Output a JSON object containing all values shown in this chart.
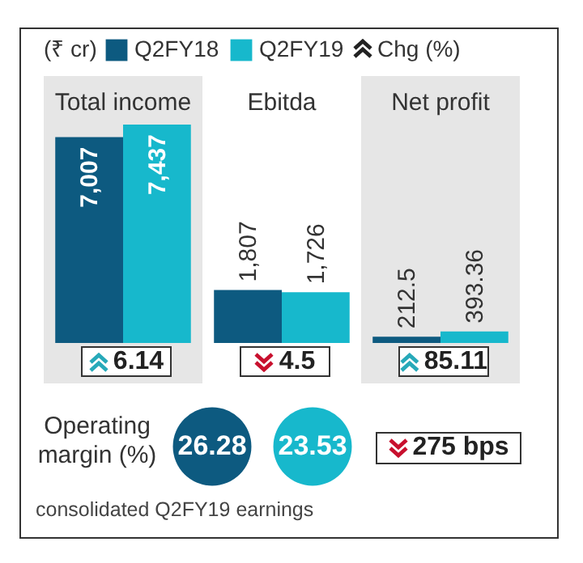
{
  "chart_data": [
    {
      "type": "bar",
      "categories": [
        "Total income",
        "Ebitda",
        "Net profit"
      ],
      "legend": "top",
      "legend_title": "(₹ cr)",
      "series": [
        {
          "name": "Q2FY18",
          "color": "#0d5a80",
          "values": [
            7007,
            1807,
            212.5
          ],
          "value_labels": [
            "7,007",
            "1,807",
            "212.5"
          ]
        },
        {
          "name": "Q2FY19",
          "color": "#17b8cc",
          "values": [
            7437,
            1726,
            393.36
          ],
          "value_labels": [
            "7,437",
            "1,726",
            "393.36"
          ]
        }
      ],
      "annotations": [
        "Chg (%)",
        "6.14",
        "4.5",
        "85.11"
      ]
    },
    {
      "type": "other",
      "title": "Operating margin (%)",
      "values": [
        26.28,
        23.53
      ],
      "colors": [
        "#0d5a80",
        "#17b8cc"
      ],
      "data_labels": true,
      "annotations": [
        "275 bps",
        "consolidated Q2FY19 earnings"
      ]
    }
  ]
}
